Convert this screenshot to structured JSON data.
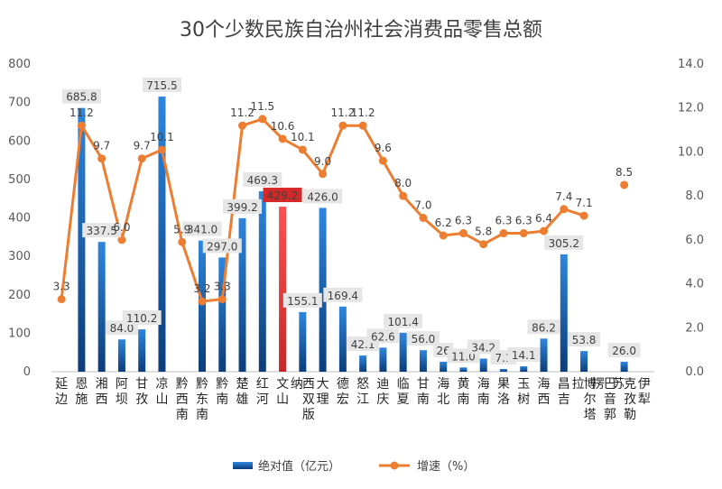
{
  "chart_data": {
    "type": "bar",
    "title": "30个少数民族自治州社会消费品零售总额",
    "categories": [
      "延边",
      "恩施",
      "湘西",
      "阿坝",
      "甘孜",
      "凉山",
      "黔西南",
      "黔东南",
      "黔南",
      "楚雄",
      "红河",
      "文山",
      "西双版纳",
      "大理",
      "德宏",
      "怒江",
      "迪庆",
      "临夏",
      "甘南",
      "海北",
      "黄南",
      "海南",
      "果洛",
      "玉树",
      "海西",
      "昌吉",
      "博尔塔拉",
      "巴音郭楞",
      "克孜勒苏",
      "伊犁"
    ],
    "category_labels": [
      "延边",
      "恩施",
      "湘西",
      "阿坝",
      "甘孜",
      "凉山",
      "黔西南",
      "黔东南",
      "黔南",
      "楚雄",
      "红河",
      "文山",
      "西双版纳",
      "大理",
      "德宏",
      "怒江",
      "迪庆",
      "临夏",
      "甘南",
      "海北",
      "黄南",
      "海南",
      "果洛",
      "玉树",
      "海西",
      "昌吉",
      "博尔塔拉",
      "巴音郭楞",
      "克孜勒苏",
      "伊犁"
    ],
    "series": [
      {
        "name": "绝对值（亿元）",
        "type": "bar",
        "axis": "left",
        "values": [
          null,
          685.8,
          337.5,
          84.0,
          110.2,
          715.5,
          null,
          341.0,
          297.0,
          399.2,
          469.3,
          429.2,
          155.1,
          426.0,
          169.4,
          42.1,
          62.6,
          101.4,
          56.0,
          26.0,
          11.0,
          34.2,
          7.1,
          14.1,
          86.2,
          305.2,
          53.8,
          null,
          26.0,
          null
        ],
        "labels": [
          "",
          "685.8",
          "337.5",
          "84.0",
          "110.2",
          "715.5",
          "",
          "341.0",
          "297.0",
          "399.2",
          "469.3",
          "429.2",
          "155.1",
          "426.0",
          "169.4",
          "42.1",
          "62.6",
          "101.4",
          "56.0",
          "26",
          "11.0",
          "34.2",
          "7.1",
          "14.1",
          "86.2",
          "305.2",
          "53.8",
          "",
          "26.0",
          ""
        ]
      },
      {
        "name": "增速（%）",
        "type": "line",
        "axis": "right",
        "values": [
          3.3,
          11.2,
          9.7,
          6.0,
          9.7,
          10.1,
          5.9,
          3.2,
          3.3,
          11.2,
          11.5,
          10.6,
          10.1,
          9.0,
          11.2,
          11.2,
          9.6,
          8.0,
          7.0,
          6.2,
          6.3,
          5.8,
          6.3,
          6.3,
          6.4,
          7.4,
          7.1,
          null,
          8.5,
          null
        ],
        "labels": [
          "3.3",
          "11.2",
          "9.7",
          "6.0",
          "9.7",
          "10.1",
          "5.9",
          "3.2",
          "3.3",
          "11.2",
          "11.5",
          "10.6",
          "10.1",
          "9.0",
          "11.2",
          "11.2",
          "9.6",
          "8.0",
          "7.0",
          "6.2",
          "6.3",
          "5.8",
          "6.3",
          "6.3",
          "6.4",
          "7.4",
          "7.1",
          "",
          "8.5",
          ""
        ]
      }
    ],
    "highlight_index": 11,
    "y_left": {
      "min": 0,
      "max": 800,
      "step": 100,
      "ticks": [
        "0",
        "100",
        "200",
        "300",
        "400",
        "500",
        "600",
        "700",
        "800"
      ]
    },
    "y_right": {
      "min": 0,
      "max": 14,
      "step": 2,
      "ticks": [
        "0.0",
        "2.0",
        "4.0",
        "6.0",
        "8.0",
        "10.0",
        "12.0",
        "14.0"
      ]
    },
    "legend": {
      "position": "bottom",
      "bar_label": "绝对值（亿元）",
      "line_label": "增速（%）"
    },
    "colors": {
      "bar": "#1f5fa8",
      "bar_highlight": "#e03a3a",
      "line": "#ed7d31",
      "label_bg": "#e6e6e6",
      "label_bg_highlight": "#d62828"
    },
    "grid": false
  }
}
